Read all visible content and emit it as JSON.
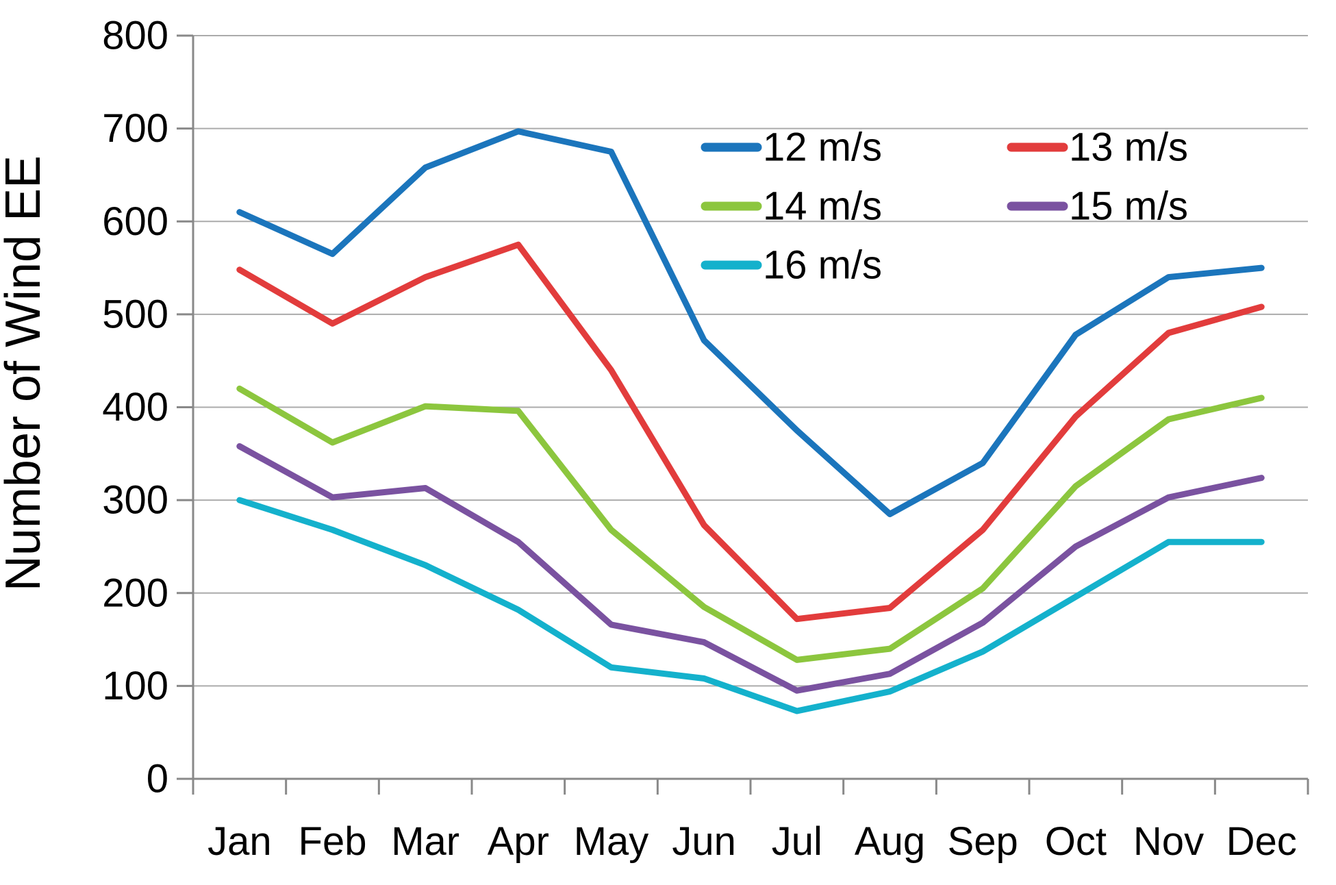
{
  "chart_data": {
    "type": "line",
    "title": "",
    "xlabel": "",
    "ylabel": "Number of Wind EE",
    "categories": [
      "Jan",
      "Feb",
      "Mar",
      "Apr",
      "May",
      "Jun",
      "Jul",
      "Aug",
      "Sep",
      "Oct",
      "Nov",
      "Dec"
    ],
    "yticks": [
      0,
      100,
      200,
      300,
      400,
      500,
      600,
      700,
      800
    ],
    "ylim": [
      0,
      800
    ],
    "grid": "horizontal",
    "legend_position": "top-right-inside",
    "series": [
      {
        "name": "12 m/s",
        "color": "#1b75bc",
        "values": [
          610,
          565,
          658,
          697,
          675,
          472,
          375,
          285,
          340,
          478,
          540,
          550
        ]
      },
      {
        "name": "13 m/s",
        "color": "#e23c3c",
        "values": [
          548,
          490,
          540,
          575,
          440,
          273,
          172,
          184,
          268,
          390,
          480,
          508
        ]
      },
      {
        "name": "14 m/s",
        "color": "#8cc63e",
        "values": [
          420,
          362,
          401,
          396,
          268,
          185,
          128,
          140,
          205,
          315,
          387,
          410
        ]
      },
      {
        "name": "15 m/s",
        "color": "#7a52a0",
        "values": [
          358,
          303,
          313,
          255,
          166,
          147,
          95,
          113,
          168,
          250,
          303,
          324
        ]
      },
      {
        "name": "16 m/s",
        "color": "#14b1cc",
        "values": [
          300,
          268,
          230,
          182,
          120,
          108,
          73,
          94,
          137,
          196,
          255,
          255
        ]
      }
    ],
    "axis_color": "#898989",
    "grid_color": "#ababab"
  }
}
